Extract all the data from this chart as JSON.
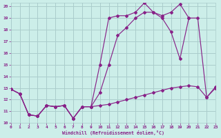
{
  "background_color": "#cceee9",
  "grid_color": "#aacccc",
  "line_color": "#882288",
  "xlim": [
    0,
    23
  ],
  "ylim": [
    10,
    20.3
  ],
  "xlabel": "Windchill (Refroidissement éolien,°C)",
  "yticks": [
    10,
    11,
    12,
    13,
    14,
    15,
    16,
    17,
    18,
    19,
    20
  ],
  "xticks": [
    0,
    1,
    2,
    3,
    4,
    5,
    6,
    7,
    8,
    9,
    10,
    11,
    12,
    13,
    14,
    15,
    16,
    17,
    18,
    19,
    20,
    21,
    22,
    23
  ],
  "series1": [
    12.9,
    12.5,
    10.7,
    10.6,
    11.5,
    11.4,
    11.5,
    10.4,
    11.4,
    11.4,
    15.0,
    19.0,
    19.2,
    19.2,
    19.5,
    20.3,
    19.5,
    19.2,
    19.5,
    20.2,
    19.0,
    19.0,
    12.2,
    13.0
  ],
  "series2": [
    12.9,
    12.5,
    10.7,
    10.6,
    11.5,
    11.4,
    11.5,
    10.4,
    11.4,
    11.4,
    12.6,
    15.0,
    17.5,
    18.2,
    19.0,
    19.5,
    19.5,
    19.0,
    17.8,
    15.5,
    19.0,
    null,
    null,
    null
  ],
  "series3": [
    12.9,
    12.5,
    10.7,
    10.6,
    11.5,
    11.4,
    11.5,
    10.4,
    11.4,
    11.4,
    11.5,
    11.6,
    11.8,
    12.0,
    12.2,
    12.4,
    12.6,
    12.8,
    13.0,
    13.1,
    13.2,
    13.1,
    12.2,
    13.1
  ],
  "figsize": [
    3.2,
    2.0
  ],
  "dpi": 100
}
